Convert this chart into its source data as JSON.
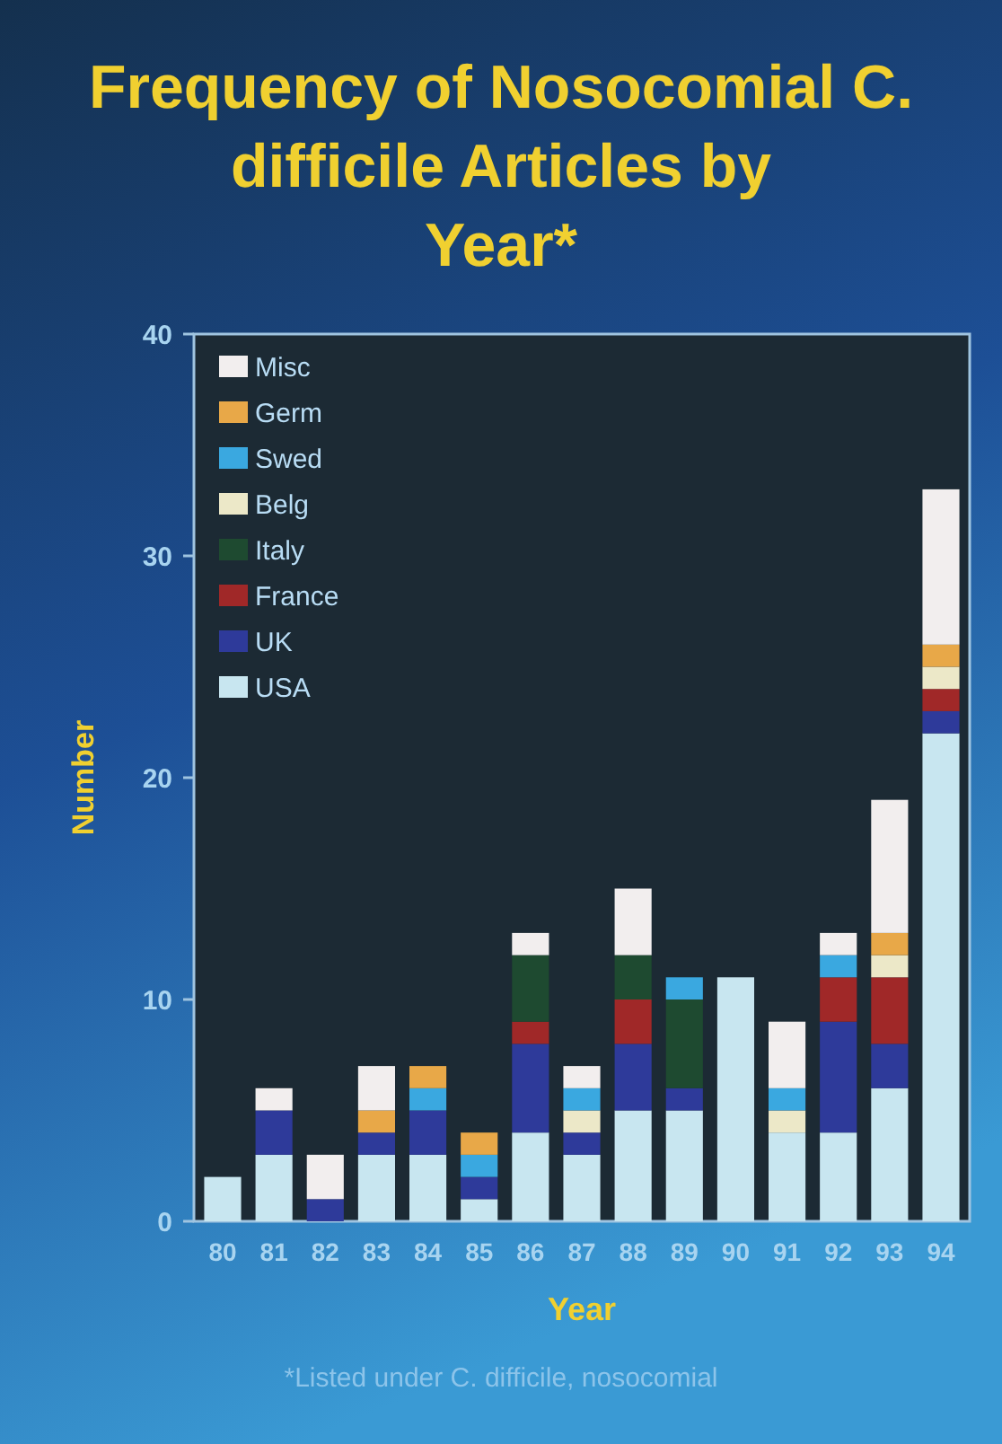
{
  "chart_data": {
    "type": "bar",
    "stacked": true,
    "title": "Frequency of Nosocomial C. difficile Articles by Year*",
    "xlabel": "Year",
    "ylabel": "Number",
    "categories": [
      "80",
      "81",
      "82",
      "83",
      "84",
      "85",
      "86",
      "87",
      "88",
      "89",
      "90",
      "91",
      "92",
      "93",
      "94"
    ],
    "series": [
      {
        "name": "USA",
        "color": "#c8e6f0",
        "values": [
          2,
          3,
          0,
          3,
          3,
          1,
          4,
          3,
          5,
          5,
          11,
          4,
          4,
          6,
          22
        ]
      },
      {
        "name": "UK",
        "color": "#2e3a9a",
        "values": [
          0,
          2,
          1,
          1,
          2,
          1,
          4,
          1,
          3,
          1,
          0,
          0,
          5,
          2,
          1
        ]
      },
      {
        "name": "France",
        "color": "#a02828",
        "values": [
          0,
          0,
          0,
          0,
          0,
          0,
          1,
          0,
          2,
          0,
          0,
          0,
          2,
          3,
          1
        ]
      },
      {
        "name": "Italy",
        "color": "#1e4a30",
        "values": [
          0,
          0,
          0,
          0,
          0,
          0,
          3,
          0,
          2,
          4,
          0,
          0,
          0,
          0,
          0
        ]
      },
      {
        "name": "Belg",
        "color": "#ece8c8",
        "values": [
          0,
          0,
          0,
          0,
          0,
          0,
          0,
          1,
          0,
          0,
          0,
          1,
          0,
          1,
          1
        ]
      },
      {
        "name": "Swed",
        "color": "#3aa8e0",
        "values": [
          0,
          0,
          0,
          0,
          1,
          1,
          0,
          1,
          0,
          1,
          0,
          1,
          1,
          0,
          0
        ]
      },
      {
        "name": "Germ",
        "color": "#e8a848",
        "values": [
          0,
          0,
          0,
          1,
          1,
          1,
          0,
          0,
          0,
          0,
          0,
          0,
          0,
          1,
          1
        ]
      },
      {
        "name": "Misc",
        "color": "#f2eeee",
        "values": [
          0,
          1,
          2,
          2,
          0,
          0,
          1,
          1,
          3,
          0,
          0,
          3,
          1,
          6,
          7
        ]
      }
    ],
    "ylim": [
      0,
      40
    ],
    "yticks": [
      0,
      10,
      20,
      30,
      40
    ],
    "grid": false,
    "legend": "top left",
    "annotations": [
      "*Listed under C. difficile, nosocomial"
    ]
  }
}
